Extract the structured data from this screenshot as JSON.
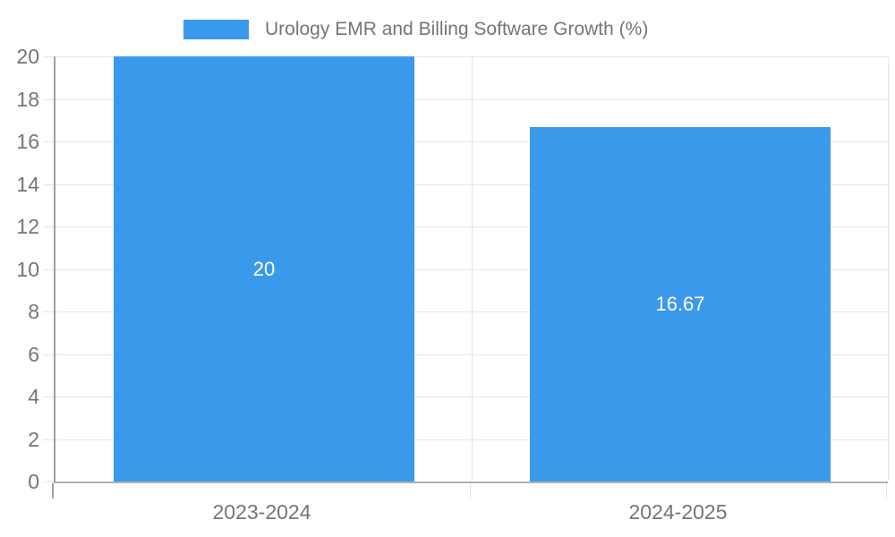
{
  "chart_data": {
    "type": "bar",
    "title": "Urology EMR and Billing Software Growth (%)",
    "legend": {
      "position": "top",
      "label": "Urology EMR and Billing Software Growth (%)"
    },
    "categories": [
      "2023-2024",
      "2024-2025"
    ],
    "values": [
      20,
      16.67
    ],
    "bar_value_labels": [
      "20",
      "16.67"
    ],
    "xlabel": "",
    "ylabel": "",
    "ylim": [
      0,
      20
    ],
    "yticks": [
      0,
      2,
      4,
      6,
      8,
      10,
      12,
      14,
      16,
      18,
      20
    ],
    "grid": true
  },
  "colors": {
    "bar": "#3B99EC",
    "bar_label_text": "#ffffff",
    "axis_text": "#757575",
    "gridline": "#e6e6e6",
    "axis_line": "#9f9f9f",
    "baseline": "#b0b0b0"
  }
}
